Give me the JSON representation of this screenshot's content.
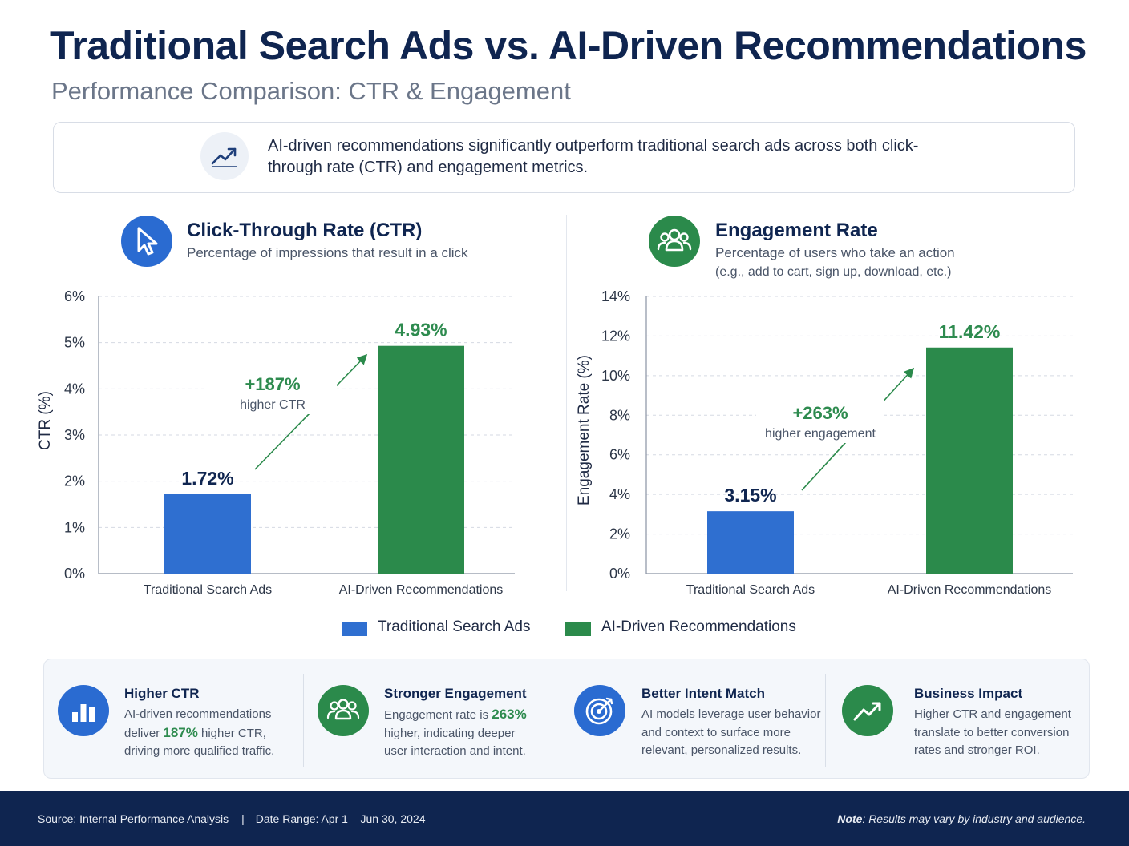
{
  "header": {
    "title": "Traditional Search Ads vs. AI-Driven Recommendations",
    "subtitle": "Performance Comparison: CTR & Engagement"
  },
  "summary": {
    "icon": "trend-up-icon",
    "text": "AI-driven recommendations significantly outperform traditional search ads across both click-through rate (CTR) and engagement metrics."
  },
  "colors": {
    "traditional": "#2f6fd0",
    "ai": "#2b8a4b",
    "navy": "#0f2550",
    "green_text": "#2e8b4f"
  },
  "ctr_panel": {
    "icon": "cursor-icon",
    "title": "Click-Through Rate (CTR)",
    "subtitle": "Percentage of impressions that result in a click"
  },
  "engagement_panel": {
    "icon": "users-icon",
    "title": "Engagement Rate",
    "subtitle_line1": "Percentage of users who take an action",
    "subtitle_line2": "(e.g., add to cart, sign up, download, etc.)"
  },
  "chart_data": [
    {
      "type": "bar",
      "title": "Click-Through Rate (CTR)",
      "ylabel": "CTR (%)",
      "categories": [
        "Traditional Search Ads",
        "AI-Driven Recommendations"
      ],
      "values": [
        1.72,
        4.93
      ],
      "value_labels": [
        "1.72%",
        "4.93%"
      ],
      "ylim": [
        0,
        6
      ],
      "yticks": [
        0,
        1,
        2,
        3,
        4,
        5,
        6
      ],
      "ytick_labels": [
        "0%",
        "1%",
        "2%",
        "3%",
        "4%",
        "5%",
        "6%"
      ],
      "annotation": {
        "value": "+187%",
        "text": "higher CTR"
      },
      "grid": true
    },
    {
      "type": "bar",
      "title": "Engagement Rate",
      "ylabel": "Engagement Rate (%)",
      "categories": [
        "Traditional Search Ads",
        "AI-Driven Recommendations"
      ],
      "values": [
        3.15,
        11.42
      ],
      "value_labels": [
        "3.15%",
        "11.42%"
      ],
      "ylim": [
        0,
        14
      ],
      "yticks": [
        0,
        2,
        4,
        6,
        8,
        10,
        12,
        14
      ],
      "ytick_labels": [
        "0%",
        "2%",
        "4%",
        "6%",
        "8%",
        "10%",
        "12%",
        "14%"
      ],
      "annotation": {
        "value": "+263%",
        "text": "higher engagement"
      },
      "grid": true
    }
  ],
  "legend": {
    "placement": "bottom-center",
    "items": [
      "Traditional Search Ads",
      "AI-Driven Recommendations"
    ]
  },
  "cards": [
    {
      "icon": "bar-chart-icon",
      "title": "Higher CTR",
      "line1": "AI-driven recommendations",
      "line2_pre": "deliver ",
      "line2_hl": "187%",
      "line2_post": " higher CTR,",
      "line3": "driving more qualified traffic."
    },
    {
      "icon": "users-icon",
      "title": "Stronger Engagement",
      "line1_pre": "Engagement rate is ",
      "line1_hl": "263%",
      "line2": "higher, indicating deeper",
      "line3": "user interaction and intent."
    },
    {
      "icon": "target-icon",
      "title": "Better Intent Match",
      "line1": "AI models leverage user behavior",
      "line2": "and context to surface more",
      "line3": "relevant, personalized results."
    },
    {
      "icon": "trend-up-icon",
      "title": "Business Impact",
      "line1": "Higher CTR and engagement",
      "line2": "translate to better conversion",
      "line3": "rates and stronger ROI."
    }
  ],
  "footer": {
    "source": "Source: Internal Performance Analysis",
    "separator": "|",
    "date_range": "Date Range: Apr 1 – Jun 30, 2024",
    "note_label": "Note",
    "note_text": ": Results may vary by industry and audience."
  }
}
